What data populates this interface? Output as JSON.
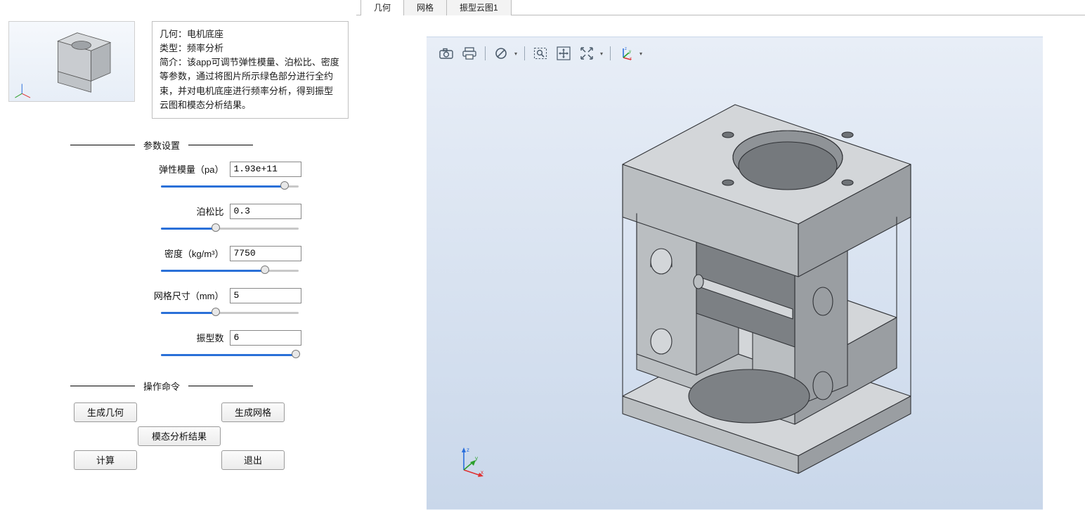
{
  "info": {
    "line1_label": "几何：",
    "line1_value": "电机底座",
    "line2_label": "类型：",
    "line2_value": "频率分析",
    "line3_label": "简介：",
    "line3_value": "该app可调节弹性模量、泊松比、密度等参数，通过将图片所示绿色部分进行全约束，并对电机底座进行频率分析，得到振型云图和模态分析结果。"
  },
  "sections": {
    "params_title": "参数设置",
    "ops_title": "操作命令"
  },
  "params": [
    {
      "label": "弹性模量（pa）",
      "value": "1.93e+11",
      "pct": 90
    },
    {
      "label": "泊松比",
      "value": "0.3",
      "pct": 40
    },
    {
      "label": "密度（kg/m³）",
      "value": "7750",
      "pct": 76
    },
    {
      "label": "网格尺寸（mm）",
      "value": "5",
      "pct": 40
    },
    {
      "label": "振型数",
      "value": "6",
      "pct": 98
    }
  ],
  "ops": {
    "gen_geom": "生成几何",
    "gen_mesh": "生成网格",
    "modal": "模态分析结果",
    "compute": "计算",
    "exit": "退出"
  },
  "tabs": [
    {
      "label": "几何",
      "active": true
    },
    {
      "label": "网格",
      "active": false
    },
    {
      "label": "振型云图1",
      "active": false
    }
  ],
  "toolbar_icons": [
    "camera-icon",
    "print-icon",
    "|",
    "forbid-icon",
    "chevron",
    "|",
    "zoom-window-icon",
    "pan-icon",
    "fit-icon",
    "chevron",
    "|",
    "axes-icon",
    "chevron"
  ],
  "triad_labels": {
    "x": "x",
    "y": "y",
    "z": "z"
  },
  "colors": {
    "viewport_top": "#e8eef7",
    "viewport_bottom": "#c9d7ea",
    "model_fill": "#babec1",
    "model_fill_light": "#d3d6d9",
    "model_fill_dark": "#9a9ea2",
    "model_edge": "#303236",
    "slider_fill": "#2a70d8",
    "axis_x": "#e03030",
    "axis_y": "#2ca02c",
    "axis_z": "#2a6fdc"
  }
}
